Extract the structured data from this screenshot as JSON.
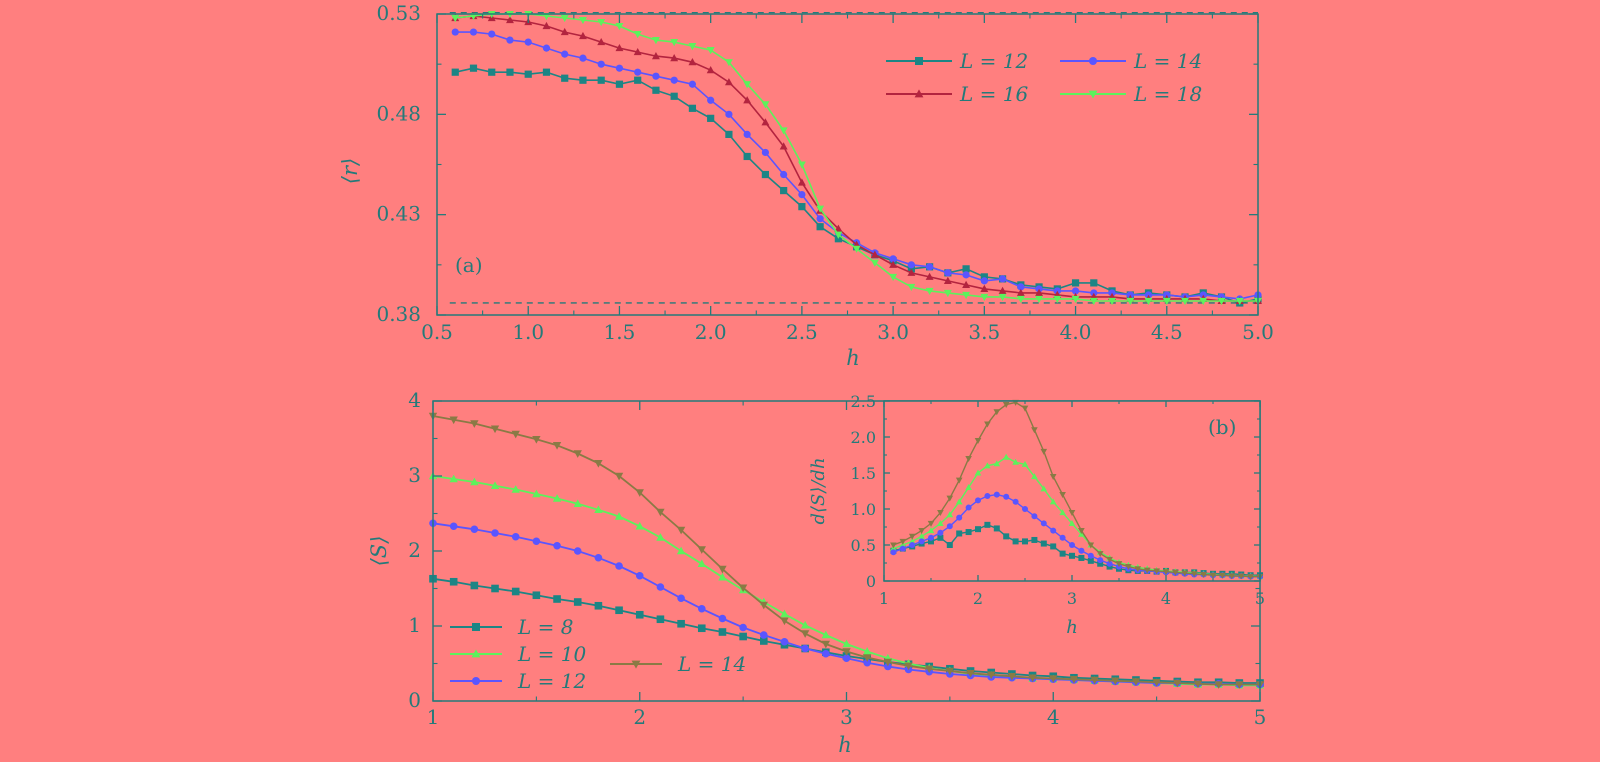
{
  "colors": {
    "background": "#ff7f7f",
    "axis": "#247a7a",
    "teal": "#1c8585",
    "blue": "#5a55ff",
    "crimson": "#b3243f",
    "green": "#5cf25c",
    "olive": "#8a7a45"
  },
  "chart_data": [
    {
      "id": "top",
      "type": "line",
      "panel_label": "(a)",
      "xlabel": "h",
      "ylabel": "⟨r⟩",
      "xlim": [
        0.5,
        5.0
      ],
      "ylim": [
        0.38,
        0.53
      ],
      "xticks": [
        0.5,
        1.0,
        1.5,
        2.0,
        2.5,
        3.0,
        3.5,
        4.0,
        4.5,
        5.0
      ],
      "xtick_labels": [
        "0.5",
        "1.0",
        "1.5",
        "2.0",
        "2.5",
        "3.0",
        "3.5",
        "4.0",
        "4.5",
        "5.0"
      ],
      "yticks": [
        0.38,
        0.43,
        0.48,
        0.53
      ],
      "ytick_labels": [
        "0.38",
        "0.43",
        "0.48",
        "0.53"
      ],
      "reference_lines": [
        0.386,
        0.5307
      ],
      "legend_position": "top-right",
      "x": [
        0.6,
        0.7,
        0.8,
        0.9,
        1.0,
        1.1,
        1.2,
        1.3,
        1.4,
        1.5,
        1.6,
        1.7,
        1.8,
        1.9,
        2.0,
        2.1,
        2.2,
        2.3,
        2.4,
        2.5,
        2.6,
        2.7,
        2.8,
        2.9,
        3.0,
        3.1,
        3.2,
        3.3,
        3.4,
        3.5,
        3.6,
        3.7,
        3.8,
        3.9,
        4.0,
        4.1,
        4.2,
        4.3,
        4.4,
        4.5,
        4.6,
        4.7,
        4.8,
        4.9,
        5.0
      ],
      "series": [
        {
          "name": "L = 12",
          "color_key": "teal",
          "marker": "square",
          "values": [
            0.501,
            0.503,
            0.501,
            0.501,
            0.5,
            0.501,
            0.498,
            0.497,
            0.497,
            0.495,
            0.497,
            0.492,
            0.489,
            0.483,
            0.478,
            0.47,
            0.459,
            0.45,
            0.442,
            0.434,
            0.424,
            0.418,
            0.414,
            0.41,
            0.407,
            0.403,
            0.404,
            0.401,
            0.403,
            0.399,
            0.398,
            0.395,
            0.394,
            0.393,
            0.396,
            0.396,
            0.392,
            0.39,
            0.391,
            0.39,
            0.389,
            0.391,
            0.389,
            0.386,
            0.388
          ]
        },
        {
          "name": "L = 14",
          "color_key": "blue",
          "marker": "circle",
          "values": [
            0.521,
            0.521,
            0.52,
            0.517,
            0.516,
            0.513,
            0.51,
            0.508,
            0.505,
            0.503,
            0.501,
            0.499,
            0.497,
            0.495,
            0.487,
            0.48,
            0.47,
            0.461,
            0.45,
            0.44,
            0.428,
            0.421,
            0.416,
            0.411,
            0.408,
            0.405,
            0.404,
            0.401,
            0.4,
            0.397,
            0.398,
            0.394,
            0.393,
            0.392,
            0.392,
            0.391,
            0.391,
            0.39,
            0.39,
            0.39,
            0.389,
            0.39,
            0.389,
            0.388,
            0.39
          ]
        },
        {
          "name": "L = 16",
          "color_key": "crimson",
          "marker": "triangle-up",
          "values": [
            0.528,
            0.529,
            0.528,
            0.527,
            0.526,
            0.524,
            0.521,
            0.519,
            0.516,
            0.513,
            0.511,
            0.509,
            0.508,
            0.506,
            0.502,
            0.496,
            0.487,
            0.476,
            0.464,
            0.446,
            0.432,
            0.423,
            0.415,
            0.41,
            0.405,
            0.401,
            0.399,
            0.397,
            0.395,
            0.393,
            0.392,
            0.391,
            0.391,
            0.39,
            0.389,
            0.389,
            0.389,
            0.388,
            0.388,
            0.388,
            0.388,
            0.388,
            0.387,
            0.387,
            0.387
          ]
        },
        {
          "name": "L = 18",
          "color_key": "green",
          "marker": "triangle-down",
          "values": [
            0.528,
            0.529,
            0.53,
            0.53,
            0.53,
            0.529,
            0.528,
            0.527,
            0.526,
            0.524,
            0.52,
            0.517,
            0.516,
            0.514,
            0.512,
            0.506,
            0.495,
            0.485,
            0.472,
            0.455,
            0.433,
            0.42,
            0.413,
            0.406,
            0.399,
            0.394,
            0.392,
            0.391,
            0.39,
            0.389,
            0.389,
            0.388,
            0.388,
            0.388,
            0.388,
            0.387,
            0.387,
            0.387,
            0.387,
            0.387,
            0.387,
            0.387,
            0.387,
            0.387,
            0.387
          ]
        }
      ]
    },
    {
      "id": "bottom",
      "type": "line",
      "panel_label": "(b)",
      "xlabel": "h",
      "ylabel": "⟨S⟩",
      "xlim": [
        1,
        5
      ],
      "ylim": [
        0,
        4
      ],
      "xticks": [
        1,
        2,
        3,
        4,
        5
      ],
      "xtick_labels": [
        "1",
        "2",
        "3",
        "4",
        "5"
      ],
      "yticks": [
        0,
        1,
        2,
        3,
        4
      ],
      "ytick_labels": [
        "0",
        "1",
        "2",
        "3",
        "4"
      ],
      "legend_position": "bottom-left",
      "x": [
        1.0,
        1.1,
        1.2,
        1.3,
        1.4,
        1.5,
        1.6,
        1.7,
        1.8,
        1.9,
        2.0,
        2.1,
        2.2,
        2.3,
        2.4,
        2.5,
        2.6,
        2.7,
        2.8,
        2.9,
        3.0,
        3.1,
        3.2,
        3.3,
        3.4,
        3.5,
        3.6,
        3.7,
        3.8,
        3.9,
        4.0,
        4.1,
        4.2,
        4.3,
        4.4,
        4.5,
        4.6,
        4.7,
        4.8,
        4.9,
        5.0
      ],
      "series": [
        {
          "name": "L = 8",
          "color_key": "teal",
          "marker": "square",
          "values": [
            1.63,
            1.59,
            1.54,
            1.5,
            1.46,
            1.41,
            1.36,
            1.32,
            1.27,
            1.21,
            1.15,
            1.09,
            1.03,
            0.97,
            0.92,
            0.86,
            0.8,
            0.75,
            0.7,
            0.65,
            0.6,
            0.56,
            0.52,
            0.49,
            0.46,
            0.43,
            0.4,
            0.38,
            0.36,
            0.34,
            0.33,
            0.31,
            0.3,
            0.29,
            0.28,
            0.27,
            0.26,
            0.25,
            0.25,
            0.24,
            0.24
          ]
        },
        {
          "name": "L = 10",
          "color_key": "green",
          "marker": "triangle-up",
          "values": [
            3.0,
            2.96,
            2.92,
            2.87,
            2.82,
            2.76,
            2.7,
            2.63,
            2.55,
            2.46,
            2.33,
            2.18,
            2.0,
            1.83,
            1.65,
            1.48,
            1.32,
            1.16,
            1.01,
            0.88,
            0.76,
            0.66,
            0.57,
            0.5,
            0.44,
            0.4,
            0.36,
            0.34,
            0.32,
            0.3,
            0.29,
            0.28,
            0.27,
            0.26,
            0.25,
            0.24,
            0.23,
            0.22,
            0.22,
            0.21,
            0.21
          ]
        },
        {
          "name": "L = 12",
          "color_key": "blue",
          "marker": "circle",
          "values": [
            2.37,
            2.33,
            2.29,
            2.24,
            2.19,
            2.13,
            2.07,
            2.0,
            1.91,
            1.8,
            1.67,
            1.52,
            1.37,
            1.23,
            1.1,
            0.98,
            0.88,
            0.79,
            0.7,
            0.63,
            0.57,
            0.51,
            0.46,
            0.42,
            0.39,
            0.36,
            0.34,
            0.32,
            0.31,
            0.3,
            0.29,
            0.28,
            0.27,
            0.26,
            0.25,
            0.24,
            0.24,
            0.23,
            0.23,
            0.22,
            0.22
          ]
        },
        {
          "name": "L = 14",
          "color_key": "olive",
          "marker": "triangle-down",
          "values": [
            3.8,
            3.75,
            3.7,
            3.63,
            3.56,
            3.49,
            3.41,
            3.3,
            3.17,
            3.0,
            2.78,
            2.52,
            2.28,
            2.02,
            1.76,
            1.51,
            1.28,
            1.07,
            0.9,
            0.76,
            0.66,
            0.58,
            0.52,
            0.47,
            0.43,
            0.4,
            0.37,
            0.35,
            0.33,
            0.31,
            0.3,
            0.29,
            0.28,
            0.27,
            0.26,
            0.25,
            0.24,
            0.23,
            0.22,
            0.22,
            0.22
          ]
        }
      ]
    },
    {
      "id": "inset",
      "type": "line",
      "xlabel": "h",
      "ylabel": "d⟨S⟩/dh",
      "xlim": [
        1,
        5
      ],
      "ylim": [
        0,
        2.5
      ],
      "xticks": [
        1,
        2,
        3,
        4,
        5
      ],
      "xtick_labels": [
        "1",
        "2",
        "3",
        "4",
        "5"
      ],
      "yticks": [
        0,
        0.5,
        1.0,
        1.5,
        2.0,
        2.5
      ],
      "ytick_labels": [
        "0",
        "0.5",
        "1.0",
        "1.5",
        "2.0",
        "2.5"
      ],
      "x": [
        1.1,
        1.2,
        1.3,
        1.4,
        1.5,
        1.6,
        1.7,
        1.8,
        1.9,
        2.0,
        2.1,
        2.2,
        2.3,
        2.4,
        2.5,
        2.6,
        2.7,
        2.8,
        2.9,
        3.0,
        3.1,
        3.2,
        3.3,
        3.4,
        3.5,
        3.6,
        3.7,
        3.8,
        3.9,
        4.0,
        4.1,
        4.2,
        4.3,
        4.4,
        4.5,
        4.6,
        4.7,
        4.8,
        4.9,
        5.0
      ],
      "series": [
        {
          "name": "L = 8",
          "color_key": "teal",
          "marker": "square",
          "values": [
            0.42,
            0.45,
            0.48,
            0.52,
            0.55,
            0.6,
            0.5,
            0.66,
            0.68,
            0.72,
            0.78,
            0.73,
            0.62,
            0.55,
            0.55,
            0.57,
            0.52,
            0.48,
            0.38,
            0.35,
            0.32,
            0.28,
            0.24,
            0.2,
            0.17,
            0.15,
            0.14,
            0.14,
            0.13,
            0.14,
            0.12,
            0.12,
            0.12,
            0.11,
            0.1,
            0.1,
            0.1,
            0.09,
            0.08,
            0.08
          ]
        },
        {
          "name": "L = 10",
          "color_key": "green",
          "marker": "triangle-up",
          "values": [
            0.45,
            0.5,
            0.55,
            0.62,
            0.7,
            0.8,
            0.92,
            1.1,
            1.3,
            1.5,
            1.6,
            1.63,
            1.72,
            1.65,
            1.62,
            1.45,
            1.28,
            1.1,
            0.95,
            0.8,
            0.65,
            0.5,
            0.4,
            0.32,
            0.26,
            0.22,
            0.19,
            0.17,
            0.15,
            0.14,
            0.13,
            0.12,
            0.11,
            0.1,
            0.09,
            0.08,
            0.08,
            0.07,
            0.07,
            0.06
          ]
        },
        {
          "name": "L = 12",
          "color_key": "blue",
          "marker": "circle",
          "values": [
            0.4,
            0.45,
            0.5,
            0.55,
            0.6,
            0.67,
            0.76,
            0.88,
            1.02,
            1.12,
            1.18,
            1.2,
            1.17,
            1.1,
            1.0,
            0.9,
            0.8,
            0.7,
            0.6,
            0.5,
            0.42,
            0.35,
            0.29,
            0.24,
            0.2,
            0.17,
            0.15,
            0.14,
            0.13,
            0.12,
            0.11,
            0.1,
            0.09,
            0.09,
            0.08,
            0.08,
            0.07,
            0.07,
            0.06,
            0.06
          ]
        },
        {
          "name": "L = 14",
          "color_key": "olive",
          "marker": "triangle-down",
          "values": [
            0.5,
            0.55,
            0.62,
            0.7,
            0.8,
            0.95,
            1.15,
            1.4,
            1.7,
            1.95,
            2.18,
            2.35,
            2.45,
            2.48,
            2.4,
            2.1,
            1.8,
            1.45,
            1.2,
            0.95,
            0.7,
            0.5,
            0.38,
            0.3,
            0.24,
            0.2,
            0.17,
            0.15,
            0.14,
            0.13,
            0.12,
            0.11,
            0.1,
            0.09,
            0.08,
            0.08,
            0.07,
            0.07,
            0.06,
            0.06
          ]
        }
      ]
    }
  ]
}
